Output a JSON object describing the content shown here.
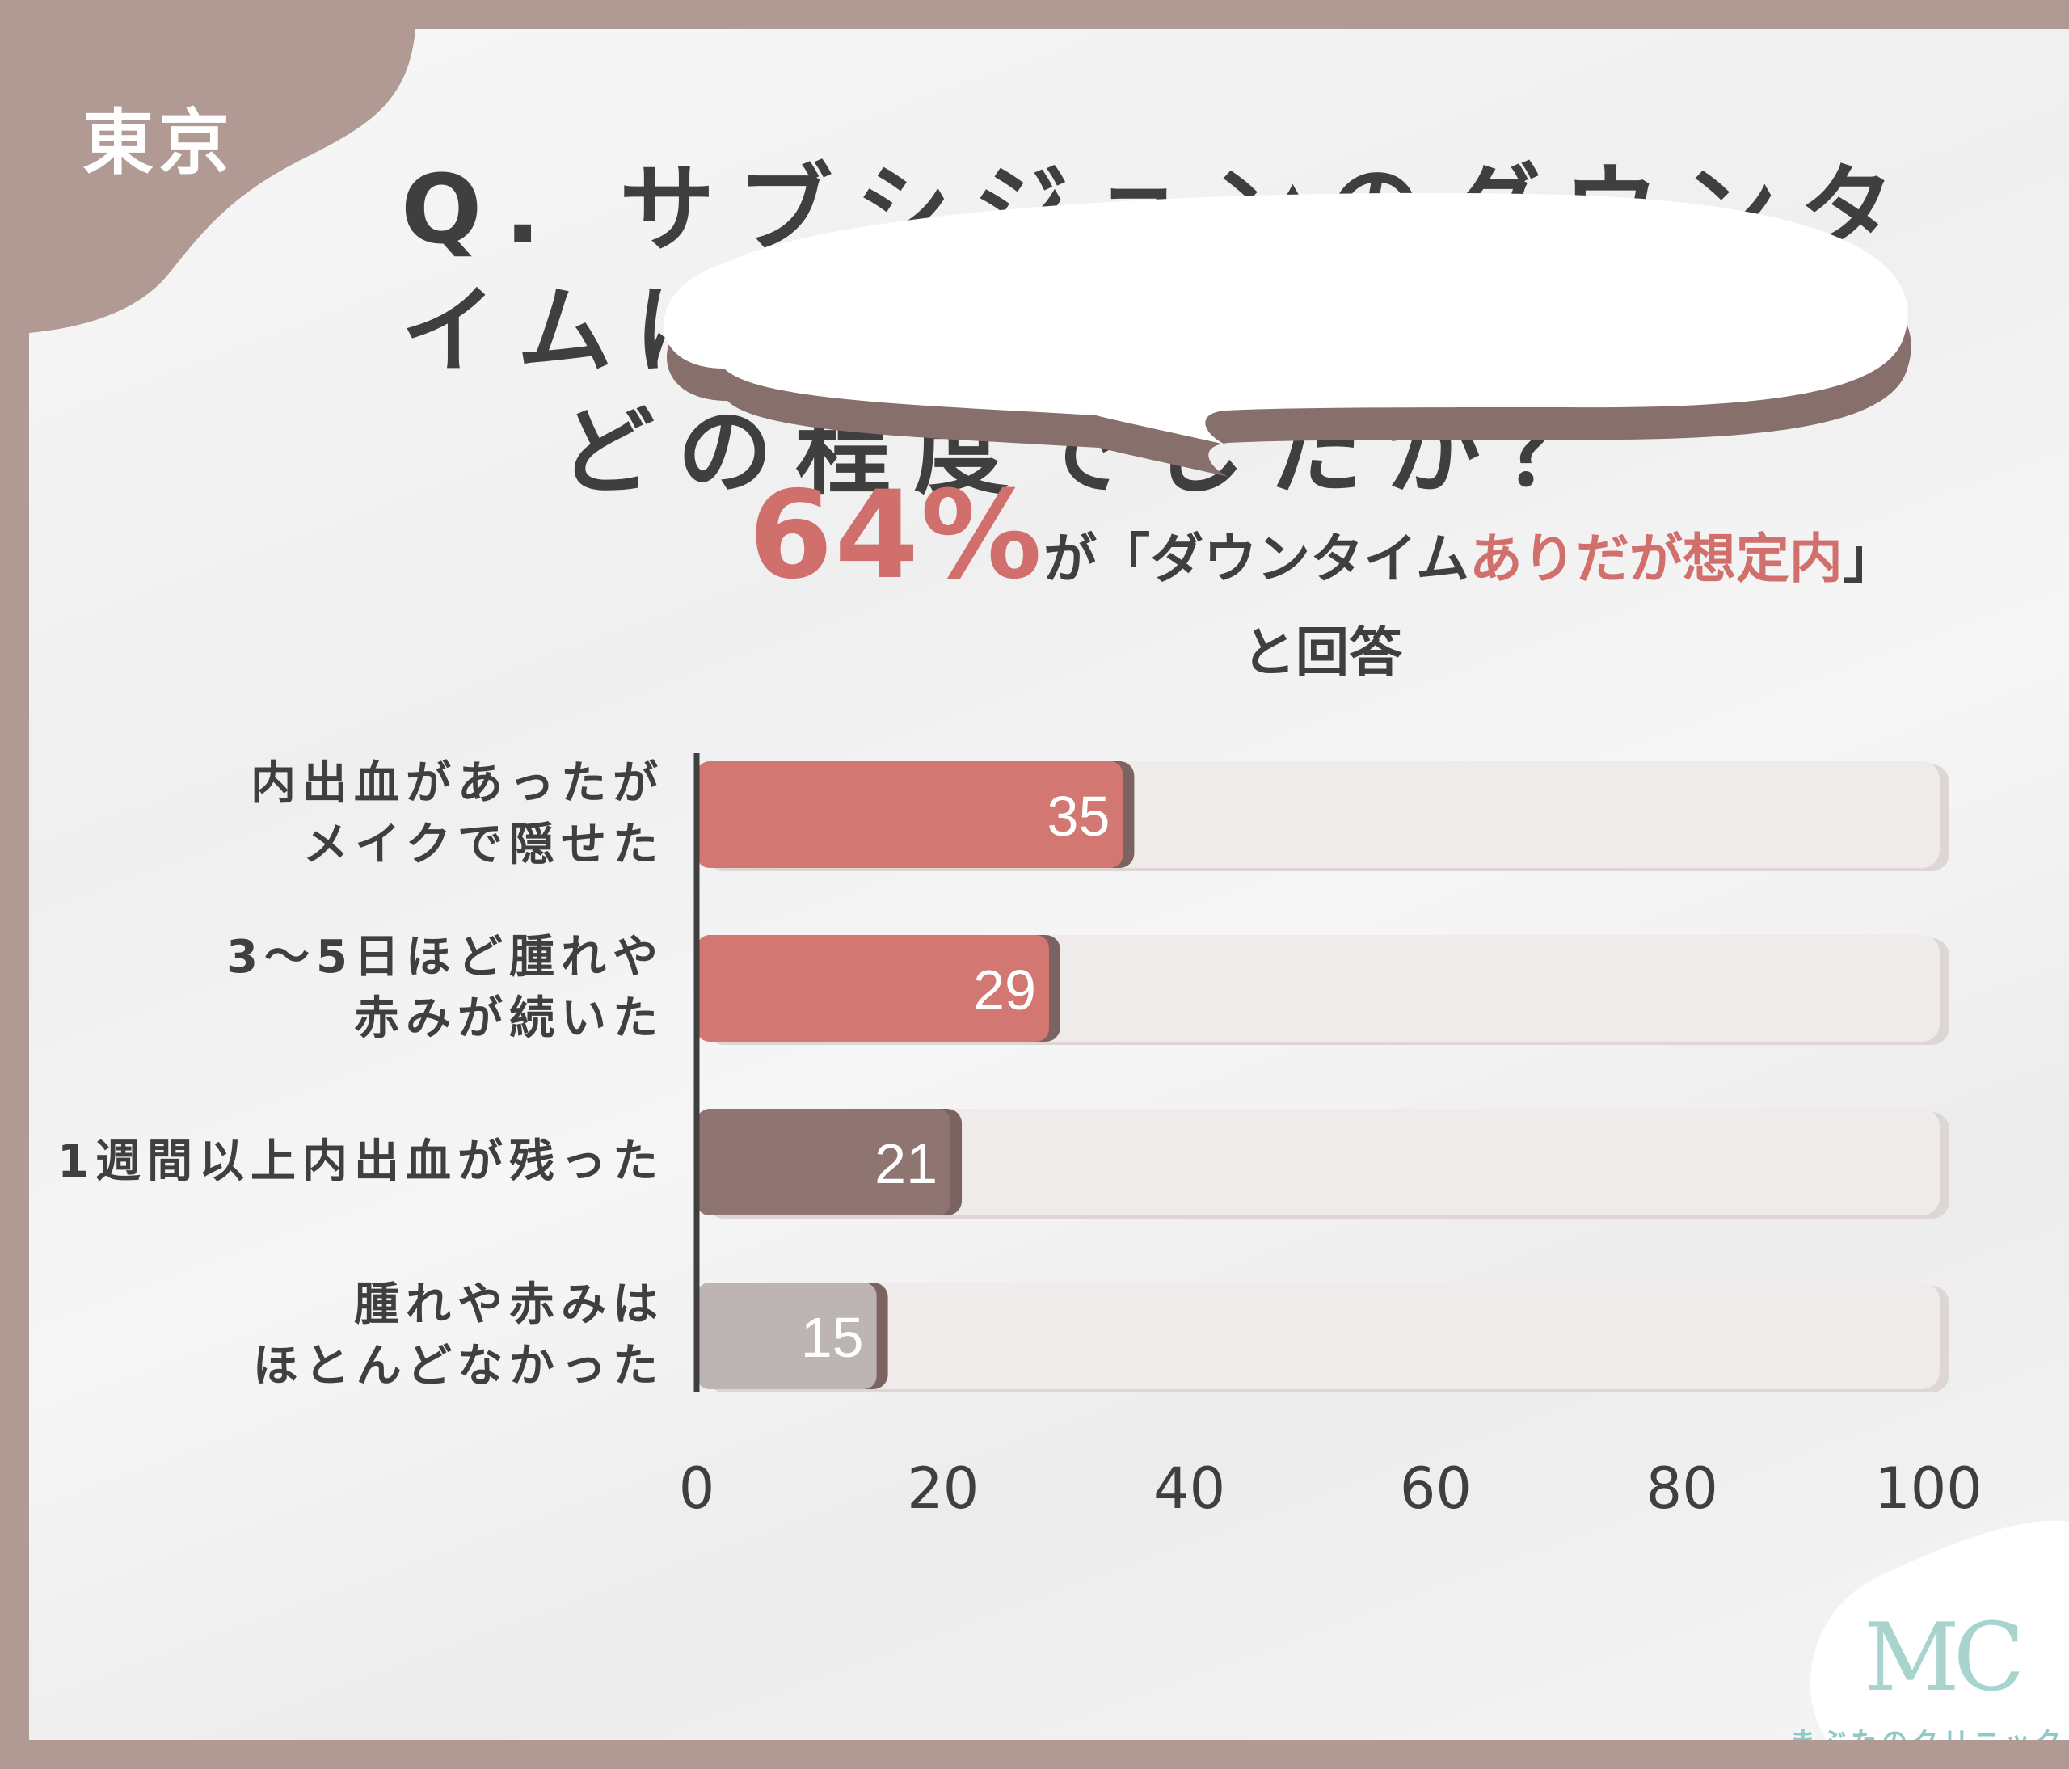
{
  "region_label": "東京",
  "title": {
    "line1": "Q. サブシジョンのダウンタイムは",
    "line2": "どの程度でしたか？"
  },
  "callout": {
    "percent": "64%",
    "text_a": "が「ダウンタイム",
    "highlight": "ありだが想定内",
    "text_b": "」",
    "line2": "と回答"
  },
  "brand": {
    "mark": "MC",
    "name": "まぶたのクリニック"
  },
  "colors": {
    "accent": "#d27771",
    "dark_bar": "#8e7572",
    "light_bar": "#bcb5b4",
    "track": "#efebea",
    "frame": "#b09a93",
    "brand": "#8cc9c7"
  },
  "chart_data": {
    "type": "bar",
    "orientation": "horizontal",
    "categories": [
      [
        "内出血があったが",
        "メイクで隠せた"
      ],
      [
        "3〜5日ほど腫れや",
        "赤みが続いた"
      ],
      [
        "1週間以上内出血が残った"
      ],
      [
        "腫れや赤みは",
        "ほとんどなかった"
      ]
    ],
    "values": [
      35,
      29,
      21,
      15
    ],
    "bar_colors": [
      "#d27771",
      "#d27771",
      "#8e7572",
      "#bcb5b4"
    ],
    "xlim": [
      0,
      100
    ],
    "xticks": [
      0,
      20,
      40,
      60,
      80,
      100
    ],
    "grid": false,
    "legend": "none"
  }
}
